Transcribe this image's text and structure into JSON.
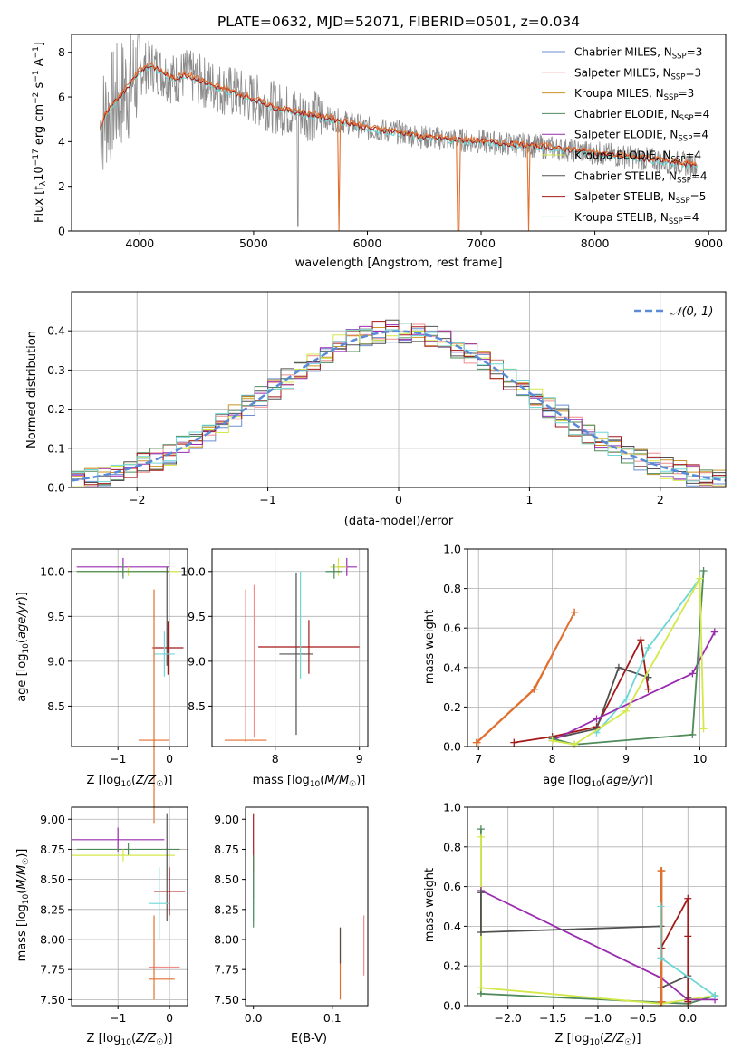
{
  "figure_title": "PLATE=0632, MJD=52071, FIBERID=0501, z=0.034",
  "colors": {
    "Chabrier MILES": "#6a8fd6",
    "Salpeter MILES": "#f08c8c",
    "Kroupa MILES": "#c8962a",
    "Chabrier ELODIE": "#4f8a5a",
    "Salpeter ELODIE": "#9a2bb0",
    "Kroupa ELODIE": "#d4e84a",
    "Chabrier STELIB": "#505050",
    "Salpeter STELIB": "#a51818",
    "Kroupa STELIB": "#6ed6d6",
    "data": "#8a8a8a",
    "highlight": "#e07030",
    "gaussian": "#5a8ad8"
  },
  "chart_data": [
    {
      "id": "spectrum",
      "type": "line",
      "xlabel": "wavelength [Angstrom, rest frame]",
      "ylabel": "Flux [f_λ 10^-17 erg cm^-2 s^-1 A^-1]",
      "xlim": [
        3400,
        9150
      ],
      "ylim": [
        0,
        8.8
      ],
      "xticks": [
        4000,
        5000,
        6000,
        7000,
        8000,
        9000
      ],
      "yticks": [
        0,
        2,
        4,
        6,
        8
      ],
      "legend_position": "right",
      "legend": [
        {
          "name": "Chabrier MILES",
          "nssp": "3"
        },
        {
          "name": "Salpeter MILES",
          "nssp": "3"
        },
        {
          "name": "Kroupa MILES",
          "nssp": "3"
        },
        {
          "name": "Chabrier ELODIE",
          "nssp": "4"
        },
        {
          "name": "Salpeter ELODIE",
          "nssp": "4"
        },
        {
          "name": "Kroupa ELODIE",
          "nssp": "4"
        },
        {
          "name": "Chabrier STELIB",
          "nssp": "4"
        },
        {
          "name": "Salpeter STELIB",
          "nssp": "5"
        },
        {
          "name": "Kroupa STELIB",
          "nssp": "4"
        }
      ],
      "model_curve": {
        "wavelength": [
          3650,
          3700,
          3800,
          3900,
          4000,
          4100,
          4200,
          4300,
          4400,
          4500,
          4700,
          5000,
          5200,
          5500,
          5800,
          6000,
          6300,
          6500,
          7000,
          7500,
          8000,
          8500,
          8800,
          9000
        ],
        "flux": [
          4.6,
          5.2,
          5.9,
          6.5,
          7.2,
          7.4,
          7.1,
          6.8,
          7.0,
          6.8,
          6.4,
          5.9,
          5.5,
          5.2,
          4.9,
          4.6,
          4.4,
          4.2,
          4.0,
          3.8,
          3.5,
          3.2,
          3.0,
          2.9
        ]
      }
    },
    {
      "id": "residuals",
      "type": "line",
      "xlabel": "(data-model)/error",
      "ylabel": "Normed distribution",
      "xlim": [
        -2.5,
        2.5
      ],
      "ylim": [
        0,
        0.5
      ],
      "xticks": [
        -2,
        -1,
        0,
        1,
        2
      ],
      "yticks": [
        0.0,
        0.1,
        0.2,
        0.3,
        0.4
      ],
      "grid": true,
      "legend_position": "top-right",
      "legend_label": "N(0,1)"
    },
    {
      "id": "z-age",
      "type": "scatter",
      "xlabel": "Z [log10(Z/Z☉)]",
      "ylabel": "age  [log10(age/yr)]",
      "xlim": [
        -1.9,
        0.35
      ],
      "ylim": [
        8.05,
        10.25
      ],
      "xticks": [
        -1,
        0
      ],
      "yticks": [
        8.5,
        9.0,
        9.5,
        10.0
      ],
      "grid": true
    },
    {
      "id": "mass-age",
      "type": "scatter",
      "xlabel": "mass [log10(M/M☉)]",
      "ylabel": "",
      "xlim": [
        7.25,
        9.1
      ],
      "ylim": [
        8.05,
        10.25
      ],
      "xticks": [
        8,
        9
      ],
      "yticks": [
        8.5,
        9.0,
        9.5,
        10.0
      ],
      "grid": true
    },
    {
      "id": "age-weight",
      "type": "line",
      "xlabel": "age  [log10(age/yr)]",
      "ylabel": "mass weight",
      "xlim": [
        6.85,
        10.35
      ],
      "ylim": [
        0,
        1.0
      ],
      "xticks": [
        7,
        8,
        9,
        10
      ],
      "yticks": [
        0.0,
        0.2,
        0.4,
        0.6,
        0.8,
        1.0
      ],
      "grid": true,
      "series": [
        {
          "color": "Kroupa MILES",
          "x": [
            6.97,
            7.75,
            8.3
          ],
          "y": [
            0.02,
            0.29,
            0.68
          ]
        },
        {
          "color": "Chabrier MILES",
          "x": [
            6.98,
            7.76,
            8.3
          ],
          "y": [
            0.02,
            0.29,
            0.68
          ]
        },
        {
          "color": "Salpeter STELIB",
          "x": [
            7.48,
            8.0,
            8.6,
            9.2,
            9.3
          ],
          "y": [
            0.02,
            0.05,
            0.1,
            0.54,
            0.29
          ]
        },
        {
          "color": "Chabrier STELIB",
          "x": [
            8.0,
            8.6,
            8.9,
            9.3
          ],
          "y": [
            0.04,
            0.09,
            0.4,
            0.35
          ]
        },
        {
          "color": "Kroupa STELIB",
          "x": [
            8.6,
            9.0,
            9.3,
            10.0
          ],
          "y": [
            0.07,
            0.24,
            0.5,
            0.85
          ]
        },
        {
          "color": "Salpeter ELODIE",
          "x": [
            8.0,
            8.6,
            9.9,
            10.2
          ],
          "y": [
            0.03,
            0.14,
            0.37,
            0.58
          ]
        },
        {
          "color": "Chabrier ELODIE",
          "x": [
            8.0,
            8.3,
            9.9,
            10.05
          ],
          "y": [
            0.04,
            0.01,
            0.06,
            0.89
          ]
        },
        {
          "color": "Kroupa ELODIE",
          "x": [
            8.0,
            8.3,
            9.0,
            10.0,
            10.05
          ],
          "y": [
            0.03,
            0.01,
            0.18,
            0.85,
            0.09
          ]
        }
      ]
    },
    {
      "id": "z-mass",
      "type": "scatter",
      "xlabel": "Z [log10(Z/Z☉)]",
      "ylabel": "mass [log10(M/M☉)]",
      "xlim": [
        -1.9,
        0.35
      ],
      "ylim": [
        7.45,
        9.1
      ],
      "xticks": [
        -1,
        0
      ],
      "yticks": [
        7.5,
        7.75,
        8.0,
        8.25,
        8.5,
        8.75,
        9.0
      ],
      "grid": true
    },
    {
      "id": "ebv-mass",
      "type": "scatter",
      "xlabel": "E(B-V)",
      "ylabel": "",
      "xlim": [
        -0.01,
        0.145
      ],
      "ylim": [
        7.45,
        9.1
      ],
      "xticks": [
        0.0,
        0.1
      ],
      "yticks": [
        7.5,
        7.75,
        8.0,
        8.25,
        8.5,
        8.75,
        9.0
      ],
      "grid": false
    },
    {
      "id": "z-weight",
      "type": "line",
      "xlabel": "Z [log10(Z/Z☉)]",
      "ylabel": "mass weight",
      "xlim": [
        -2.45,
        0.42
      ],
      "ylim": [
        0,
        1.0
      ],
      "xticks": [
        -2.0,
        -1.5,
        -1.0,
        -0.5,
        0.0
      ],
      "yticks": [
        0.0,
        0.2,
        0.4,
        0.6,
        0.8,
        1.0
      ],
      "grid": true,
      "series": [
        {
          "color": "Chabrier ELODIE",
          "x": [
            -2.3,
            -2.3,
            0.0,
            0.3
          ],
          "y": [
            0.89,
            0.06,
            0.01,
            0.05
          ]
        },
        {
          "color": "Kroupa ELODIE",
          "x": [
            -2.3,
            -2.3,
            -0.3,
            0.3
          ],
          "y": [
            0.85,
            0.09,
            0.01,
            0.05
          ]
        },
        {
          "color": "Salpeter ELODIE",
          "x": [
            -2.3,
            -0.3,
            0.0,
            0.3
          ],
          "y": [
            0.58,
            0.14,
            0.03,
            0.03
          ]
        },
        {
          "color": "Chabrier STELIB",
          "x": [
            -2.3,
            -2.3,
            -0.3,
            -0.3,
            0.0,
            0.0
          ],
          "y": [
            0.57,
            0.37,
            0.4,
            0.09,
            0.15,
            0.04
          ]
        },
        {
          "color": "Kroupa MILES",
          "x": [
            -0.3,
            -0.3
          ],
          "y": [
            0.68,
            0.02
          ]
        },
        {
          "color": "Chabrier MILES",
          "x": [
            -0.29,
            -0.29,
            -0.29
          ],
          "y": [
            0.68,
            0.29,
            0.02
          ]
        },
        {
          "color": "Salpeter STELIB",
          "x": [
            -0.3,
            0.0,
            0.0,
            0.0
          ],
          "y": [
            0.29,
            0.54,
            0.35,
            0.02
          ]
        },
        {
          "color": "Kroupa STELIB",
          "x": [
            -0.3,
            -0.3,
            0.3,
            0.3
          ],
          "y": [
            0.5,
            0.24,
            0.05,
            0.05
          ]
        }
      ]
    }
  ]
}
